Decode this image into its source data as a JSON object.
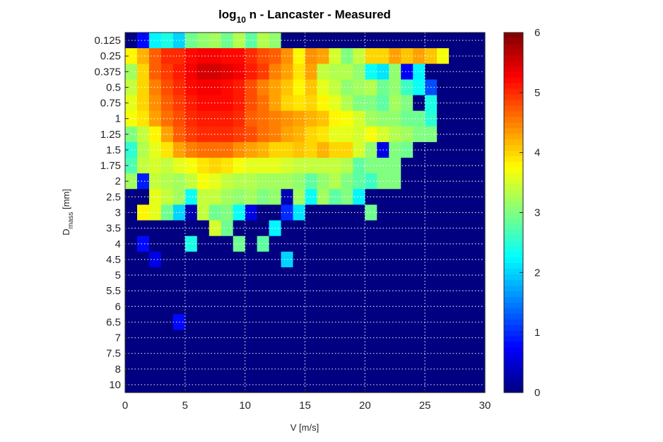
{
  "chart_data": {
    "type": "heatmap",
    "title": {
      "prefix": "log",
      "subscript": "10",
      "suffix": " n - Lancaster - Measured"
    },
    "xlabel": "V [m/s]",
    "ylabel": {
      "base": "D",
      "subscript": "mass",
      "suffix": " [mm]"
    },
    "xlim": [
      0,
      30
    ],
    "x_ticks": [
      "0",
      "5",
      "10",
      "15",
      "20",
      "25",
      "30"
    ],
    "y_ticks": [
      "0.125",
      "0.25",
      "0.375",
      "0.5",
      "0.75",
      "1",
      "1.25",
      "1.5",
      "1.75",
      "2",
      "2.5",
      "3",
      "3.5",
      "4",
      "4.5",
      "5",
      "5.5",
      "6",
      "6.5",
      "7",
      "7.5",
      "8",
      "10"
    ],
    "colorbar": {
      "colormap": "jet",
      "range": [
        0,
        6
      ],
      "ticks": [
        "0",
        "1",
        "2",
        "3",
        "4",
        "5",
        "6"
      ]
    },
    "grid": "dotted",
    "n_columns": 30,
    "rows": [
      [
        0,
        0.8,
        2.2,
        2.4,
        2.0,
        2.9,
        3.1,
        3.2,
        2.9,
        3.3,
        2.8,
        3.3,
        3.1,
        0,
        0,
        0,
        0,
        0,
        0,
        0,
        0,
        0,
        0,
        0,
        0,
        0,
        0,
        0,
        0,
        0
      ],
      [
        3.8,
        4.2,
        4.7,
        5.0,
        5.0,
        5.2,
        5.3,
        5.3,
        5.2,
        5.2,
        5.0,
        4.8,
        4.7,
        4.4,
        3.8,
        4.4,
        4.3,
        3.5,
        3.0,
        3.4,
        4.0,
        4.0,
        4.3,
        4.1,
        4.3,
        4.1,
        3.7,
        0,
        0,
        0
      ],
      [
        3.2,
        4.0,
        4.7,
        4.9,
        5.1,
        5.3,
        5.5,
        5.5,
        5.4,
        5.3,
        5.1,
        4.9,
        4.5,
        4.3,
        3.9,
        4.3,
        3.4,
        3.3,
        3.3,
        3.1,
        2.3,
        2.1,
        3.1,
        0.7,
        2.2,
        0,
        0,
        0,
        0,
        0
      ],
      [
        3.4,
        4.0,
        4.5,
        4.8,
        5.0,
        5.2,
        5.3,
        5.3,
        5.2,
        5.1,
        4.8,
        4.5,
        4.3,
        4.1,
        3.8,
        4.1,
        3.6,
        3.4,
        3.1,
        3.2,
        3.3,
        2.9,
        3.1,
        2.6,
        2.3,
        1.2,
        0,
        0,
        0,
        0
      ],
      [
        3.6,
        4.0,
        4.4,
        4.7,
        4.9,
        5.1,
        5.2,
        5.2,
        5.2,
        5.1,
        4.8,
        4.6,
        4.3,
        4.0,
        3.9,
        4.0,
        3.8,
        3.6,
        3.3,
        3.0,
        3.0,
        2.8,
        3.2,
        3.0,
        0,
        2.4,
        0,
        0,
        0,
        0
      ],
      [
        3.7,
        3.9,
        4.3,
        4.6,
        4.8,
        5.0,
        5.1,
        5.1,
        5.1,
        5.0,
        4.7,
        4.6,
        4.5,
        4.4,
        4.3,
        4.2,
        4.1,
        3.8,
        3.7,
        3.5,
        3.2,
        3.1,
        3.1,
        2.9,
        2.9,
        2.5,
        0,
        0,
        0,
        0
      ],
      [
        3.0,
        3.4,
        3.8,
        4.3,
        4.7,
        4.9,
        5.0,
        5.0,
        5.0,
        4.9,
        4.8,
        4.6,
        4.5,
        4.3,
        4.2,
        4.0,
        3.9,
        3.6,
        3.6,
        3.5,
        3.7,
        3.5,
        3.3,
        3.2,
        3.0,
        3.0,
        0,
        0,
        0,
        0
      ],
      [
        2.5,
        3.3,
        3.6,
        3.9,
        4.3,
        4.5,
        4.6,
        4.6,
        4.6,
        4.4,
        4.3,
        4.2,
        4.0,
        4.0,
        4.1,
        4.0,
        4.2,
        4.0,
        4.0,
        3.5,
        3.1,
        0.6,
        3.0,
        2.9,
        0,
        0,
        0,
        0,
        0,
        0
      ],
      [
        2.7,
        3.4,
        3.5,
        3.4,
        3.6,
        3.7,
        3.9,
        4.0,
        3.9,
        3.7,
        3.6,
        3.6,
        3.6,
        3.5,
        3.4,
        3.4,
        3.4,
        3.4,
        3.3,
        2.8,
        3.0,
        3.0,
        3.0,
        0,
        0,
        0,
        0,
        0,
        0,
        0
      ],
      [
        3.2,
        0.9,
        3.4,
        3.3,
        3.2,
        3.4,
        3.7,
        3.6,
        3.4,
        3.3,
        3.3,
        3.2,
        3.2,
        3.2,
        3.1,
        2.8,
        3.1,
        3.3,
        3.0,
        2.8,
        2.6,
        3.0,
        3.0,
        0,
        0,
        0,
        0,
        0,
        0,
        0
      ],
      [
        0,
        0,
        3.6,
        3.4,
        3.2,
        2.3,
        3.4,
        3.4,
        3.2,
        3.1,
        3.2,
        3.0,
        3.1,
        0.3,
        3.2,
        2.3,
        3.2,
        2.8,
        3.0,
        2.2,
        0,
        0,
        0,
        0,
        0,
        0,
        0,
        0,
        0,
        0
      ],
      [
        0,
        3.8,
        3.6,
        2.9,
        2.0,
        0.3,
        3.4,
        2.9,
        3.0,
        2.3,
        0.6,
        0,
        0,
        1.0,
        2.1,
        0,
        0,
        0,
        0,
        0,
        2.9,
        0,
        0,
        0,
        0,
        0,
        0,
        0,
        0,
        0
      ],
      [
        0,
        0,
        0,
        0,
        0,
        0,
        0,
        3.5,
        2.9,
        0,
        0,
        0,
        2.2,
        0,
        0,
        0,
        0,
        0,
        0,
        0,
        0,
        0,
        0,
        0,
        0,
        0,
        0,
        0,
        0,
        0
      ],
      [
        0,
        0.8,
        0,
        0,
        0,
        2.4,
        0,
        0,
        0,
        2.9,
        0,
        2.8,
        0,
        0,
        0,
        0,
        0,
        0,
        0,
        0,
        0,
        0,
        0,
        0,
        0,
        0,
        0,
        0,
        0,
        0
      ],
      [
        0,
        0,
        0.6,
        0,
        0,
        0,
        0,
        0,
        0,
        0,
        0,
        0,
        0,
        2.0,
        0,
        0,
        0,
        0,
        0,
        0,
        0,
        0,
        0,
        0,
        0,
        0,
        0,
        0,
        0,
        0
      ],
      [
        0,
        0,
        0,
        0,
        0,
        0,
        0,
        0,
        0,
        0,
        0,
        0,
        0,
        0,
        0,
        0,
        0,
        0,
        0,
        0,
        0,
        0,
        0,
        0,
        0,
        0,
        0,
        0,
        0,
        0
      ],
      [
        0,
        0,
        0,
        0,
        0,
        0,
        0,
        0,
        0,
        0,
        0,
        0,
        0,
        0,
        0,
        0,
        0,
        0,
        0,
        0,
        0,
        0,
        0,
        0,
        0,
        0,
        0,
        0,
        0,
        0
      ],
      [
        0,
        0,
        0,
        0,
        0,
        0,
        0,
        0,
        0,
        0,
        0,
        0,
        0,
        0,
        0,
        0,
        0,
        0,
        0,
        0,
        0,
        0,
        0,
        0,
        0,
        0,
        0,
        0,
        0,
        0
      ],
      [
        0,
        0,
        0,
        0,
        0,
        0,
        0,
        0,
        0,
        0,
        0,
        0,
        0,
        0,
        0,
        0,
        0,
        0,
        0,
        0,
        0,
        0,
        0,
        0,
        0,
        0,
        0,
        0,
        0,
        0
      ],
      [
        0,
        0,
        0,
        0,
        0,
        0,
        0,
        0,
        0,
        0,
        0,
        0,
        0,
        0,
        0,
        0,
        0,
        0,
        0,
        0,
        0,
        0,
        0,
        0,
        0,
        0,
        0,
        0,
        0,
        0
      ],
      [
        0,
        0,
        0,
        0,
        0,
        0,
        0,
        0,
        0,
        0,
        0,
        0,
        0,
        0,
        0,
        0,
        0,
        0,
        0,
        0,
        0,
        0,
        0,
        0,
        0,
        0,
        0,
        0,
        0,
        0
      ],
      [
        0,
        0,
        0,
        0,
        0,
        0,
        0,
        0,
        0,
        0,
        0,
        0,
        0,
        0,
        0,
        0,
        0,
        0,
        0,
        0,
        0,
        0,
        0,
        0,
        0,
        0,
        0,
        0,
        0,
        0
      ],
      [
        0,
        0,
        0,
        0,
        0,
        0,
        0,
        0,
        0,
        0,
        0,
        0,
        0,
        0,
        0,
        0,
        0,
        0,
        0,
        0,
        0,
        0,
        0,
        0,
        0,
        0,
        0,
        0,
        0,
        0
      ]
    ],
    "overrides": [
      {
        "row": 18,
        "col": 4,
        "value": 0.8
      }
    ]
  }
}
